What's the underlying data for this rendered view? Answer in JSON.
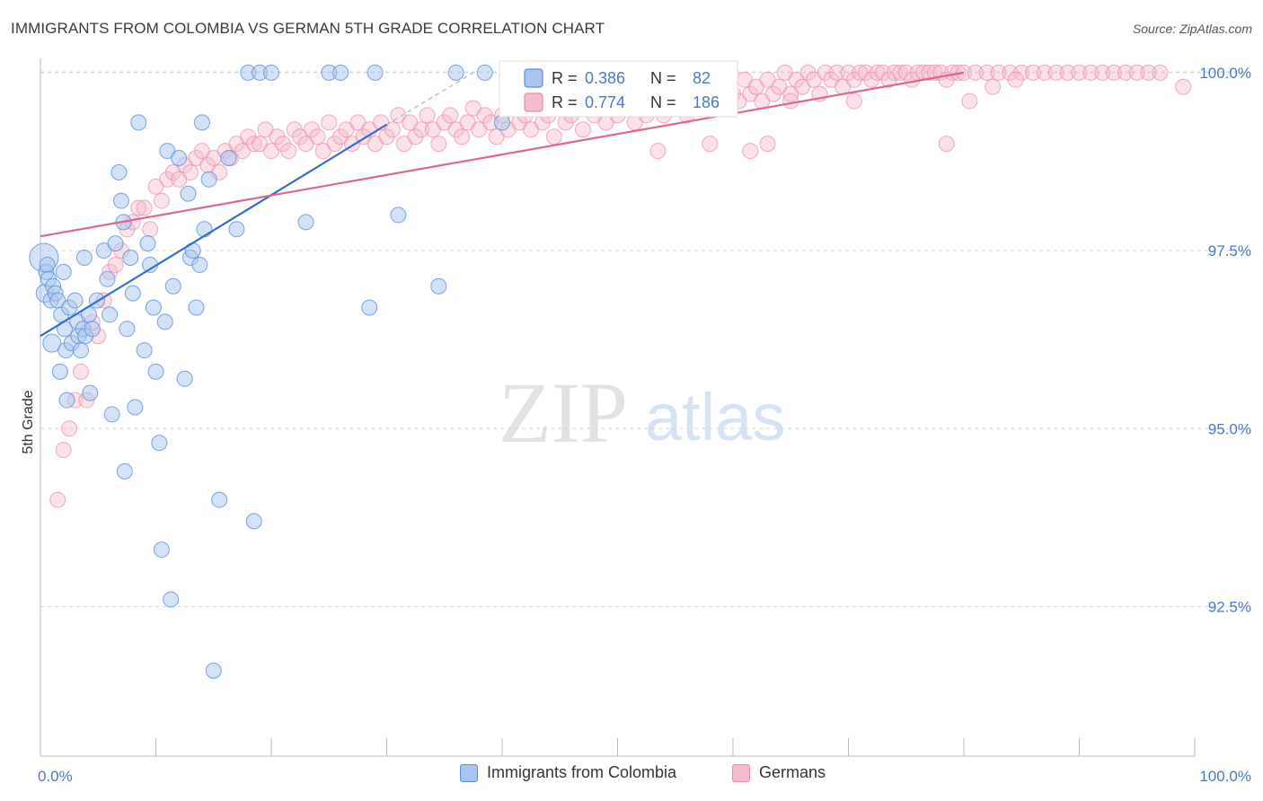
{
  "header": {
    "title": "IMMIGRANTS FROM COLOMBIA VS GERMAN 5TH GRADE CORRELATION CHART",
    "source": "Source: ZipAtlas.com"
  },
  "watermark": {
    "zip": "ZIP",
    "atlas": "atlas"
  },
  "colors": {
    "blue": "#5b8fd6",
    "blue_fill": "#a9c5ef",
    "blue_line": "#2f6fcc",
    "pink": "#e98aa8",
    "pink_fill": "#f6bccd",
    "pink_line": "#e0658f",
    "axis_text": "#4a78c8",
    "grid": "#d8d8d8"
  },
  "chart_data": {
    "type": "scatter",
    "title": "IMMIGRANTS FROM COLOMBIA VS GERMAN 5TH GRADE CORRELATION CHART",
    "xlabel": "",
    "ylabel": "5th Grade",
    "xlim": [
      0,
      100
    ],
    "ylim": [
      90.5,
      100.3
    ],
    "x_tick_labels": [
      "0.0%",
      "100.0%"
    ],
    "y_ticks": [
      92.5,
      95.0,
      97.5,
      100.0
    ],
    "y_tick_labels": [
      "92.5%",
      "95.0%",
      "97.5%",
      "100.0%"
    ],
    "grid": true,
    "legend_position": "top-center",
    "stats": [
      {
        "r_label": "R = ",
        "r_value": "0.386",
        "n_label": "N = ",
        "n_value": "82"
      },
      {
        "r_label": "R = ",
        "r_value": "0.774",
        "n_label": "N = ",
        "n_value": "186"
      }
    ],
    "series": [
      {
        "name": "Immigrants from Colombia",
        "color": "#5b8fd6",
        "trend": {
          "x": [
            0,
            30
          ],
          "y": [
            96.3,
            99.27
          ],
          "dashed_to": [
            37.5,
            100.0
          ]
        },
        "points": [
          [
            0.3,
            97.4
          ],
          [
            0.4,
            96.9
          ],
          [
            0.5,
            97.2
          ],
          [
            0.6,
            97.3
          ],
          [
            0.7,
            97.1
          ],
          [
            0.9,
            96.8
          ],
          [
            1.0,
            96.2
          ],
          [
            1.1,
            97.0
          ],
          [
            1.3,
            96.9
          ],
          [
            1.5,
            96.8
          ],
          [
            1.7,
            95.8
          ],
          [
            1.8,
            96.6
          ],
          [
            2.0,
            97.2
          ],
          [
            2.1,
            96.4
          ],
          [
            2.2,
            96.1
          ],
          [
            2.3,
            95.4
          ],
          [
            2.5,
            96.7
          ],
          [
            2.7,
            96.2
          ],
          [
            3.0,
            96.8
          ],
          [
            3.2,
            96.5
          ],
          [
            3.3,
            96.3
          ],
          [
            3.5,
            96.1
          ],
          [
            3.7,
            96.4
          ],
          [
            3.8,
            97.4
          ],
          [
            3.9,
            96.3
          ],
          [
            4.2,
            96.6
          ],
          [
            4.3,
            95.5
          ],
          [
            4.5,
            96.4
          ],
          [
            4.9,
            96.8
          ],
          [
            5.5,
            97.5
          ],
          [
            5.8,
            97.1
          ],
          [
            6.0,
            96.6
          ],
          [
            6.2,
            95.2
          ],
          [
            6.5,
            97.6
          ],
          [
            6.8,
            98.6
          ],
          [
            7.0,
            98.2
          ],
          [
            7.2,
            97.9
          ],
          [
            7.3,
            94.4
          ],
          [
            7.5,
            96.4
          ],
          [
            7.8,
            97.4
          ],
          [
            8.0,
            96.9
          ],
          [
            8.2,
            95.3
          ],
          [
            8.5,
            99.3
          ],
          [
            9.0,
            96.1
          ],
          [
            9.3,
            97.6
          ],
          [
            9.5,
            97.3
          ],
          [
            9.8,
            96.7
          ],
          [
            10.0,
            95.8
          ],
          [
            10.3,
            94.8
          ],
          [
            10.5,
            93.3
          ],
          [
            10.8,
            96.5
          ],
          [
            11.0,
            98.9
          ],
          [
            11.3,
            92.6
          ],
          [
            11.5,
            97.0
          ],
          [
            12.0,
            98.8
          ],
          [
            12.5,
            95.7
          ],
          [
            12.8,
            98.3
          ],
          [
            13.0,
            97.4
          ],
          [
            13.2,
            97.5
          ],
          [
            13.5,
            96.7
          ],
          [
            13.8,
            97.3
          ],
          [
            14.0,
            99.3
          ],
          [
            14.2,
            97.8
          ],
          [
            14.6,
            98.5
          ],
          [
            15.0,
            91.6
          ],
          [
            15.5,
            94.0
          ],
          [
            16.3,
            98.8
          ],
          [
            17.0,
            97.8
          ],
          [
            18.0,
            100.0
          ],
          [
            18.5,
            93.7
          ],
          [
            19.0,
            100.0
          ],
          [
            20.0,
            100.0
          ],
          [
            23.0,
            97.9
          ],
          [
            25.0,
            100.0
          ],
          [
            26.0,
            100.0
          ],
          [
            28.5,
            96.7
          ],
          [
            29.0,
            100.0
          ],
          [
            31.0,
            98.0
          ],
          [
            34.5,
            97.0
          ],
          [
            36.0,
            100.0
          ],
          [
            38.5,
            100.0
          ],
          [
            40.0,
            99.3
          ]
        ],
        "sizes_big": [
          [
            0.3,
            97.4
          ],
          [
            1.0,
            96.2
          ],
          [
            0.4,
            96.9
          ]
        ]
      },
      {
        "name": "Germans",
        "color": "#e98aa8",
        "trend": {
          "x": [
            0,
            80
          ],
          "y": [
            97.7,
            100.0
          ]
        },
        "points": [
          [
            1.5,
            94.0
          ],
          [
            2.0,
            94.7
          ],
          [
            2.5,
            95.0
          ],
          [
            3.0,
            95.4
          ],
          [
            3.5,
            95.8
          ],
          [
            4.0,
            95.4
          ],
          [
            4.5,
            96.5
          ],
          [
            5.0,
            96.3
          ],
          [
            5.5,
            96.8
          ],
          [
            6.0,
            97.2
          ],
          [
            6.5,
            97.3
          ],
          [
            7.0,
            97.5
          ],
          [
            7.5,
            97.8
          ],
          [
            8.0,
            97.9
          ],
          [
            8.5,
            98.1
          ],
          [
            9.0,
            98.1
          ],
          [
            9.5,
            97.8
          ],
          [
            10.0,
            98.4
          ],
          [
            10.5,
            98.2
          ],
          [
            11.0,
            98.5
          ],
          [
            11.5,
            98.6
          ],
          [
            12.0,
            98.5
          ],
          [
            12.5,
            98.7
          ],
          [
            13.0,
            98.6
          ],
          [
            13.5,
            98.8
          ],
          [
            14.0,
            98.9
          ],
          [
            14.5,
            98.7
          ],
          [
            15.0,
            98.8
          ],
          [
            15.5,
            98.6
          ],
          [
            16.0,
            98.9
          ],
          [
            16.5,
            98.8
          ],
          [
            17.0,
            99.0
          ],
          [
            17.5,
            98.9
          ],
          [
            18.0,
            99.1
          ],
          [
            18.5,
            99.0
          ],
          [
            19.0,
            99.0
          ],
          [
            19.5,
            99.2
          ],
          [
            20.0,
            98.9
          ],
          [
            20.5,
            99.1
          ],
          [
            21.0,
            99.0
          ],
          [
            21.5,
            98.9
          ],
          [
            22.0,
            99.2
          ],
          [
            22.5,
            99.1
          ],
          [
            23.0,
            99.0
          ],
          [
            23.5,
            99.2
          ],
          [
            24.0,
            99.1
          ],
          [
            24.5,
            98.9
          ],
          [
            25.0,
            99.3
          ],
          [
            25.5,
            99.0
          ],
          [
            26.0,
            99.1
          ],
          [
            26.5,
            99.2
          ],
          [
            27.0,
            99.0
          ],
          [
            27.5,
            99.3
          ],
          [
            28.0,
            99.1
          ],
          [
            28.5,
            99.2
          ],
          [
            29.0,
            99.0
          ],
          [
            29.5,
            99.3
          ],
          [
            30.0,
            99.1
          ],
          [
            30.5,
            99.2
          ],
          [
            31.0,
            99.4
          ],
          [
            31.5,
            99.0
          ],
          [
            32.0,
            99.3
          ],
          [
            32.5,
            99.1
          ],
          [
            33.0,
            99.2
          ],
          [
            33.5,
            99.4
          ],
          [
            34.0,
            99.2
          ],
          [
            34.5,
            99.0
          ],
          [
            35.0,
            99.3
          ],
          [
            35.5,
            99.4
          ],
          [
            36.0,
            99.2
          ],
          [
            36.5,
            99.1
          ],
          [
            37.0,
            99.3
          ],
          [
            37.5,
            99.5
          ],
          [
            38.0,
            99.2
          ],
          [
            38.5,
            99.4
          ],
          [
            39.0,
            99.3
          ],
          [
            39.5,
            99.1
          ],
          [
            40.0,
            99.4
          ],
          [
            40.5,
            99.2
          ],
          [
            41.0,
            99.5
          ],
          [
            41.5,
            99.3
          ],
          [
            42.0,
            99.4
          ],
          [
            42.5,
            99.2
          ],
          [
            43.0,
            99.5
          ],
          [
            43.5,
            99.3
          ],
          [
            44.0,
            99.4
          ],
          [
            44.5,
            99.1
          ],
          [
            45.0,
            99.5
          ],
          [
            45.5,
            99.3
          ],
          [
            46.0,
            99.4
          ],
          [
            46.5,
            99.6
          ],
          [
            47.0,
            99.2
          ],
          [
            47.5,
            99.5
          ],
          [
            48.0,
            99.4
          ],
          [
            48.5,
            99.6
          ],
          [
            49.0,
            99.3
          ],
          [
            49.5,
            99.5
          ],
          [
            50.0,
            99.4
          ],
          [
            50.5,
            99.6
          ],
          [
            51.0,
            99.5
          ],
          [
            51.5,
            99.3
          ],
          [
            52.0,
            99.6
          ],
          [
            52.5,
            99.4
          ],
          [
            53.0,
            99.5
          ],
          [
            53.5,
            99.7
          ],
          [
            54.0,
            99.4
          ],
          [
            54.5,
            99.6
          ],
          [
            55.0,
            99.5
          ],
          [
            55.5,
            99.7
          ],
          [
            56.0,
            99.4
          ],
          [
            56.5,
            99.6
          ],
          [
            57.0,
            99.8
          ],
          [
            57.5,
            99.5
          ],
          [
            58.0,
            99.7
          ],
          [
            58.5,
            99.6
          ],
          [
            59.0,
            99.8
          ],
          [
            59.5,
            99.5
          ],
          [
            60.0,
            99.7
          ],
          [
            60.5,
            99.6
          ],
          [
            61.0,
            99.9
          ],
          [
            61.5,
            99.7
          ],
          [
            62.0,
            99.8
          ],
          [
            62.5,
            99.6
          ],
          [
            63.0,
            99.9
          ],
          [
            63.5,
            99.7
          ],
          [
            64.0,
            99.8
          ],
          [
            64.5,
            100.0
          ],
          [
            65.0,
            99.7
          ],
          [
            65.5,
            99.9
          ],
          [
            66.0,
            99.8
          ],
          [
            66.5,
            100.0
          ],
          [
            67.0,
            99.9
          ],
          [
            67.5,
            99.7
          ],
          [
            68.0,
            100.0
          ],
          [
            68.5,
            99.9
          ],
          [
            69.0,
            100.0
          ],
          [
            69.5,
            99.8
          ],
          [
            70.0,
            100.0
          ],
          [
            70.5,
            99.9
          ],
          [
            71.0,
            100.0
          ],
          [
            71.5,
            100.0
          ],
          [
            72.0,
            99.9
          ],
          [
            72.5,
            100.0
          ],
          [
            73.0,
            100.0
          ],
          [
            73.5,
            99.9
          ],
          [
            74.0,
            100.0
          ],
          [
            74.5,
            100.0
          ],
          [
            75.0,
            100.0
          ],
          [
            75.5,
            99.9
          ],
          [
            76.0,
            100.0
          ],
          [
            76.5,
            100.0
          ],
          [
            77.0,
            100.0
          ],
          [
            77.5,
            100.0
          ],
          [
            78.0,
            100.0
          ],
          [
            78.5,
            99.9
          ],
          [
            79.0,
            100.0
          ],
          [
            79.5,
            100.0
          ],
          [
            80.0,
            100.0
          ],
          [
            81.0,
            100.0
          ],
          [
            82.0,
            100.0
          ],
          [
            83.0,
            100.0
          ],
          [
            84.0,
            100.0
          ],
          [
            85.0,
            100.0
          ],
          [
            86.0,
            100.0
          ],
          [
            87.0,
            100.0
          ],
          [
            88.0,
            100.0
          ],
          [
            89.0,
            100.0
          ],
          [
            90.0,
            100.0
          ],
          [
            91.0,
            100.0
          ],
          [
            92.0,
            100.0
          ],
          [
            93.0,
            100.0
          ],
          [
            94.0,
            100.0
          ],
          [
            95.0,
            100.0
          ],
          [
            96.0,
            100.0
          ],
          [
            97.0,
            100.0
          ],
          [
            99.0,
            99.8
          ],
          [
            80.5,
            99.6
          ],
          [
            82.5,
            99.8
          ],
          [
            84.5,
            99.9
          ],
          [
            63.0,
            99.0
          ],
          [
            61.5,
            98.9
          ],
          [
            53.5,
            98.9
          ],
          [
            78.5,
            99.0
          ],
          [
            58.0,
            99.0
          ],
          [
            65.0,
            99.6
          ],
          [
            70.5,
            99.6
          ]
        ]
      }
    ]
  },
  "legend": {
    "items": [
      {
        "label": "Immigrants from Colombia",
        "key": "blue"
      },
      {
        "label": "Germans",
        "key": "pink"
      }
    ]
  }
}
